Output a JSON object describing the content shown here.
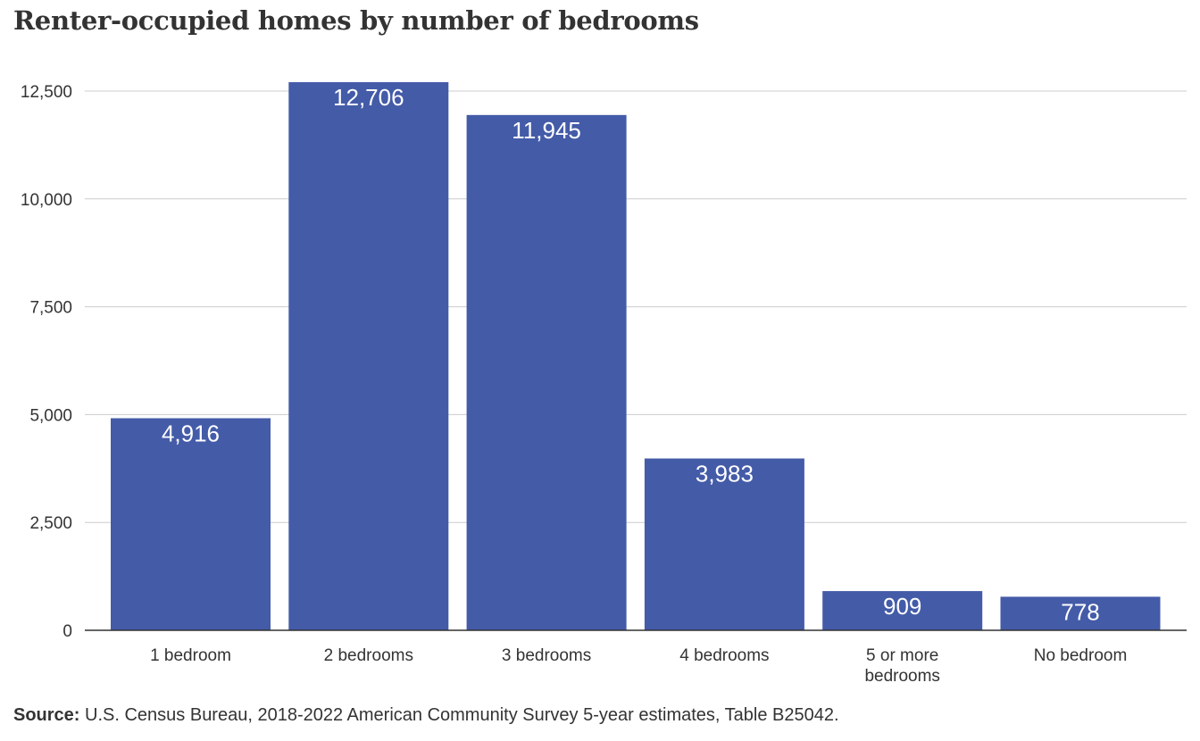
{
  "chart_data": {
    "type": "bar",
    "title": "Renter-occupied homes by number of bedrooms",
    "categories": [
      "1 bedroom",
      "2 bedrooms",
      "3 bedrooms",
      "4 bedrooms",
      "5 or more bedrooms",
      "No bedroom"
    ],
    "category_lines": [
      [
        "1 bedroom"
      ],
      [
        "2 bedrooms"
      ],
      [
        "3 bedrooms"
      ],
      [
        "4 bedrooms"
      ],
      [
        "5 or more",
        "bedrooms"
      ],
      [
        "No bedroom"
      ]
    ],
    "values": [
      4916,
      12706,
      11945,
      3983,
      909,
      778
    ],
    "value_labels": [
      "4,916",
      "12,706",
      "11,945",
      "3,983",
      "909",
      "778"
    ],
    "y_ticks": [
      0,
      2500,
      5000,
      7500,
      10000,
      12500
    ],
    "y_tick_labels": [
      "0",
      "2,500",
      "5,000",
      "7,500",
      "10,000",
      "12,500"
    ],
    "ylim": [
      0,
      12500
    ],
    "xlabel": "",
    "ylabel": "",
    "grid": true,
    "bar_color": "#445ba8",
    "grid_color": "#cccccc"
  },
  "source": {
    "label": "Source:",
    "text": " U.S. Census Bureau, 2018-2022  American Community Survey 5-year estimates, Table B25042."
  }
}
